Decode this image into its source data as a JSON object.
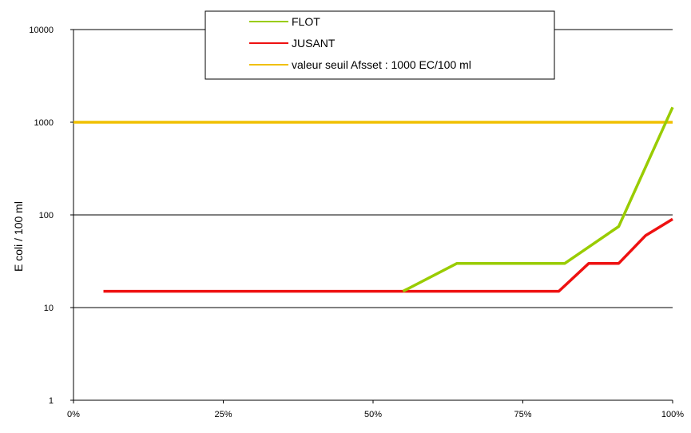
{
  "chart_data": {
    "type": "line",
    "title": "",
    "xlabel": "",
    "ylabel": "E coli / 100 ml",
    "yscale": "log",
    "ylim": [
      1,
      10000
    ],
    "xlim": [
      0,
      100
    ],
    "xticks": [
      {
        "value": 0,
        "label": "0%"
      },
      {
        "value": 25,
        "label": "25%"
      },
      {
        "value": 50,
        "label": "50%"
      },
      {
        "value": 75,
        "label": "75%"
      },
      {
        "value": 100,
        "label": "100%"
      }
    ],
    "yticks": [
      {
        "value": 1,
        "label": "1"
      },
      {
        "value": 10,
        "label": "10"
      },
      {
        "value": 100,
        "label": "100"
      },
      {
        "value": 1000,
        "label": "1000"
      },
      {
        "value": 10000,
        "label": "10000"
      }
    ],
    "grid": "horizontal",
    "legend_position": "top",
    "series": [
      {
        "name": "FLOT",
        "color": "#99cc00",
        "points": [
          [
            55,
            15
          ],
          [
            64,
            30
          ],
          [
            82,
            30
          ],
          [
            91,
            75
          ],
          [
            100,
            1450
          ]
        ]
      },
      {
        "name": "JUSANT",
        "color": "#ee1111",
        "points": [
          [
            5,
            15
          ],
          [
            81,
            15
          ],
          [
            86,
            30
          ],
          [
            91,
            30
          ],
          [
            95.5,
            60
          ],
          [
            100,
            90
          ]
        ]
      },
      {
        "name": "valeur seuil Afsset : 1000 EC/100 ml",
        "color": "#f0c000",
        "points": [
          [
            0,
            1000
          ],
          [
            100,
            1000
          ]
        ]
      }
    ]
  }
}
